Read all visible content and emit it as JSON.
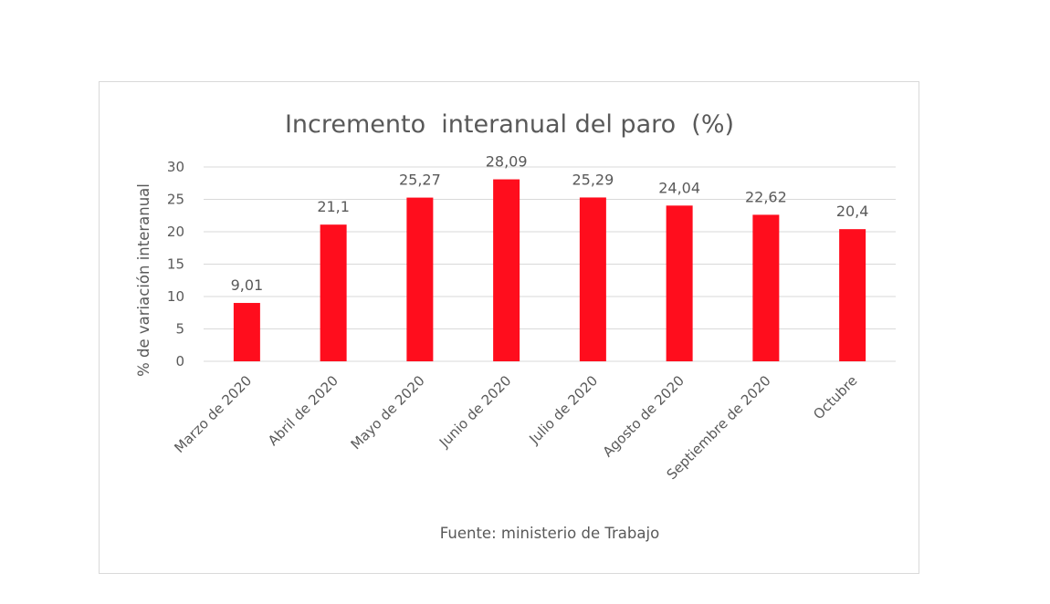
{
  "chart_data": {
    "type": "bar",
    "title": "Incremento  interanual del paro  (%)",
    "ylabel": "% de variación interanual",
    "xlabel": "",
    "source": "Fuente: ministerio de Trabajo",
    "categories": [
      "Marzo de 2020",
      "Abril de 2020",
      "Mayo de 2020",
      "Junio de 2020",
      "Julio de 2020",
      "Agosto de 2020",
      "Septiembre de 2020",
      "Octubre"
    ],
    "values": [
      9.01,
      21.1,
      25.27,
      28.09,
      25.29,
      24.04,
      22.62,
      20.4
    ],
    "value_labels": [
      "9,01",
      "21,1",
      "25,27",
      "28,09",
      "25,29",
      "24,04",
      "22,62",
      "20,4"
    ],
    "ylim": [
      0,
      30
    ],
    "yticks": [
      0,
      5,
      10,
      15,
      20,
      25,
      30
    ],
    "ytick_labels": [
      "0",
      "5",
      "10",
      "15",
      "20",
      "25",
      "30"
    ],
    "grid": true,
    "legend": "none",
    "bar_color": "#ff0d1d",
    "grid_color": "#d9d9d9"
  }
}
